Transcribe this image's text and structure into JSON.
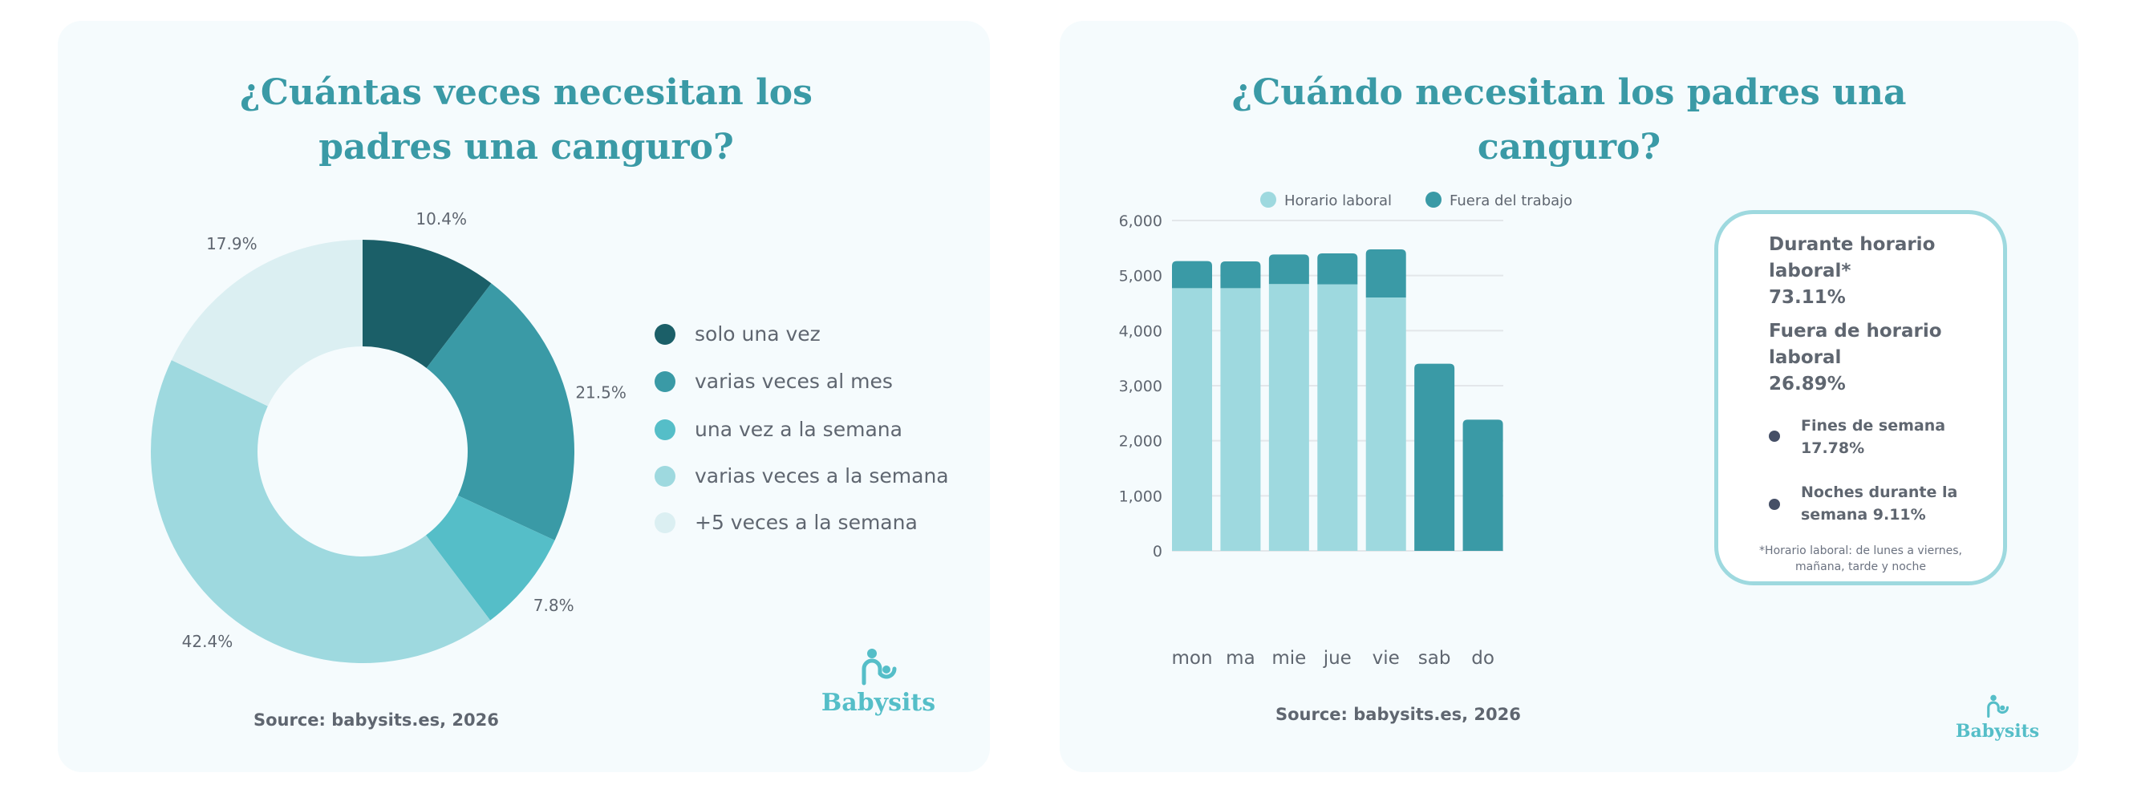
{
  "colors": {
    "accent": "#3a9aa6",
    "card_bg": "#f5fbfd",
    "text": "#5f6670",
    "box_border": "#9ed9df",
    "bullet": "#454f66"
  },
  "left": {
    "title_line1": "¿Cuántas veces necesitan los",
    "title_line2": "padres una canguro?",
    "source": "Source: babysits.es, 2026",
    "logo_text": "Babysits"
  },
  "right": {
    "title_line1": "¿Cuándo necesitan los padres una",
    "title_line2": "canguro?",
    "source": "Source: babysits.es, 2026",
    "logo_text": "Babysits",
    "stats": {
      "during_label": "Durante horario laboral*",
      "during_value": "73.11%",
      "outside_label": "Fuera de horario laboral",
      "outside_value": "26.89%",
      "weekends_label": "Fines de semana",
      "weekends_value": "17.78%",
      "nights_label": "Noches durante la semana 9.11%",
      "footnote": "*Horario laboral: de lunes a viernes, mañana, tarde y noche"
    }
  },
  "chart_data": [
    {
      "type": "pie",
      "donut": true,
      "categories": [
        "solo una vez",
        "varias veces al mes",
        "una vez a la semana",
        "varias veces a la semana",
        "+5 veces a la semana"
      ],
      "values": [
        10.4,
        21.5,
        7.8,
        42.4,
        17.9
      ],
      "data_labels": [
        "10.4%",
        "21.5%",
        "7.8%",
        "42.4%",
        "17.9%"
      ],
      "colors": [
        "#1b5f68",
        "#3a9aa6",
        "#55bec8",
        "#9ed9df",
        "#dbeff2"
      ],
      "legend_position": "right"
    },
    {
      "type": "bar",
      "stacked": true,
      "categories": [
        "mon",
        "ma",
        "mie",
        "jue",
        "vie",
        "sab",
        "do"
      ],
      "series": [
        {
          "name": "Horario laboral",
          "values": [
            4772,
            4772,
            4845,
            4840,
            4602,
            0,
            0
          ],
          "color": "#9ed9df"
        },
        {
          "name": "Fuera del trabajo",
          "values": [
            490,
            485,
            538,
            563,
            874,
            3398,
            2383
          ],
          "color": "#3a9aa6"
        }
      ],
      "ylim": [
        0,
        6000
      ],
      "yticks": [
        "0",
        "1,000",
        "2,000",
        "3,000",
        "4,000",
        "5,000",
        "6,000"
      ],
      "grid": true,
      "legend_position": "top"
    }
  ]
}
